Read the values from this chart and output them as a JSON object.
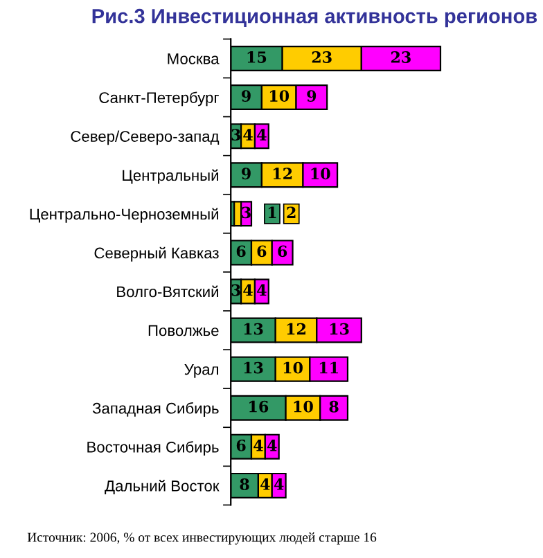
{
  "chart_data": {
    "type": "bar",
    "orientation": "horizontal",
    "stacked": true,
    "data_labels": true,
    "grid": false,
    "title": "Рис.3 Инвестиционная активность регионов",
    "categories": [
      "Москва",
      "Санкт-Петербург",
      "Север/Северо-запад",
      "Центральный",
      "Центрально-Черноземный",
      "Северный Кавказ",
      "Волго-Вятский",
      "Поволжье",
      "Урал",
      "Западная Сибирь",
      "Восточная Сибирь",
      "Дальний Восток"
    ],
    "series": [
      {
        "color": "#339966",
        "values": [
          15,
          9,
          3,
          9,
          1,
          6,
          3,
          13,
          13,
          16,
          6,
          8
        ]
      },
      {
        "color": "#ffcc00",
        "values": [
          23,
          10,
          4,
          12,
          2,
          6,
          4,
          12,
          10,
          10,
          4,
          4
        ]
      },
      {
        "color": "#ff00ff",
        "values": [
          23,
          9,
          4,
          10,
          3,
          6,
          4,
          13,
          11,
          8,
          4,
          4
        ]
      }
    ],
    "annotations": [
      "Источник: 2006, % от всех инвестирующих людей старше 16"
    ]
  }
}
